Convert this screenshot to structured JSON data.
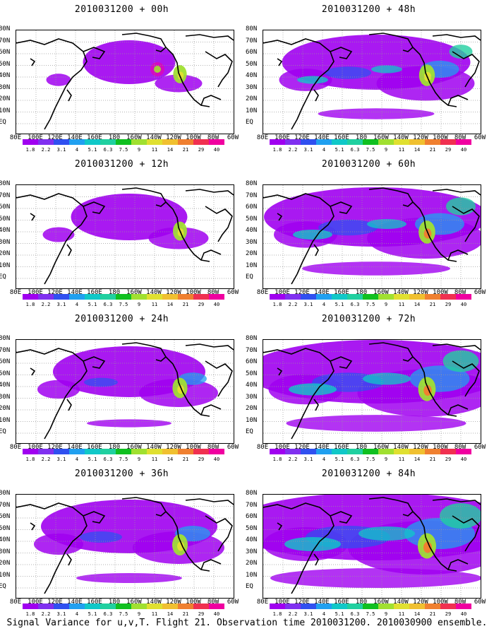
{
  "panels": [
    {
      "title": "2010031200 + 00h",
      "intensity": 0.15
    },
    {
      "title": "2010031200 + 48h",
      "intensity": 0.55
    },
    {
      "title": "2010031200 + 12h",
      "intensity": 0.25
    },
    {
      "title": "2010031200 + 60h",
      "intensity": 0.7
    },
    {
      "title": "2010031200 + 24h",
      "intensity": 0.4
    },
    {
      "title": "2010031200 + 72h",
      "intensity": 0.85
    },
    {
      "title": "2010031200 + 36h",
      "intensity": 0.5
    },
    {
      "title": "2010031200 + 84h",
      "intensity": 1.0
    }
  ],
  "lat_labels": [
    "80N",
    "70N",
    "60N",
    "50N",
    "40N",
    "30N",
    "20N",
    "10N",
    "EQ"
  ],
  "lon_labels": [
    "80E",
    "100E",
    "120E",
    "140E",
    "160E",
    "180",
    "160W",
    "140W",
    "120W",
    "100W",
    "80W",
    "60W"
  ],
  "colorbar": {
    "labels": [
      "1.8",
      "2.2",
      "3.1",
      "4",
      "5.1",
      "6.3",
      "7.5",
      "9",
      "11",
      "14",
      "21",
      "29",
      "40"
    ],
    "colors": [
      "#a000f0",
      "#8030f0",
      "#3050f0",
      "#20a0f0",
      "#10c8c8",
      "#20d0a0",
      "#10c020",
      "#a0e030",
      "#e0e030",
      "#f0c030",
      "#f08030",
      "#f03050",
      "#f000a0"
    ]
  },
  "footer": "Signal Variance for u,v,T. Flight 21. Observation time 2010031200. 2010030900 ensemble."
}
